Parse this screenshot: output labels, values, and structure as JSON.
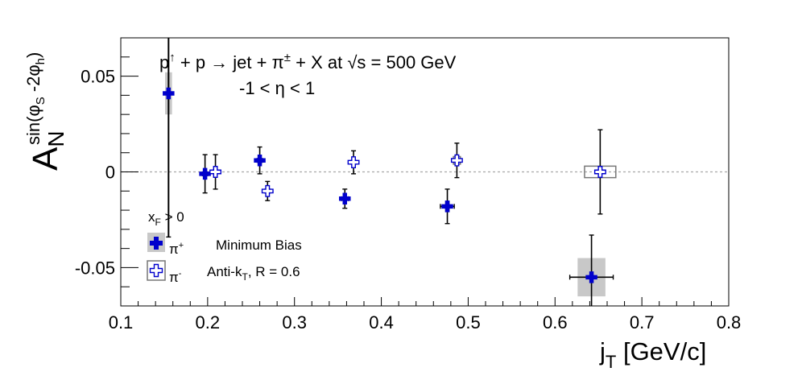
{
  "chart_data": {
    "type": "scatter",
    "title_line1_pre": "p",
    "title_line1_up": "↑",
    "title_line1_mid": " + p → jet + π",
    "title_line1_pm": "±",
    "title_line1_post": " + X at  √s = 500 GeV",
    "title_line2": "-1 < η < 1",
    "xlabel_main": "j",
    "xlabel_sub": "T",
    "xlabel_unit": " [GeV/c]",
    "ylabel_main": "A",
    "ylabel_sub": "N",
    "ylabel_sup": "sin(φ",
    "ylabel_sup_s": "S",
    "ylabel_sup_mid": " -2φ",
    "ylabel_sup_h": "h",
    "ylabel_sup_end": ")",
    "xlim": [
      0.1,
      0.8
    ],
    "ylim": [
      -0.07,
      0.07
    ],
    "xticks": [
      "0.1",
      "0.2",
      "0.3",
      "0.4",
      "0.5",
      "0.6",
      "0.7",
      "0.8"
    ],
    "yticks": [
      "-0.05",
      "0",
      "0.05"
    ],
    "zero_line": true,
    "legend": {
      "xf_main": "x",
      "xf_sub": "F",
      "xf_rest": " > 0",
      "pi_plus": "π",
      "pi_plus_sup": "+",
      "pi_minus": "π",
      "pi_minus_sup": "-",
      "note1": "Minimum Bias",
      "note2_pre": "Anti-k",
      "note2_sub": "T",
      "note2_post": ", R = 0.6"
    },
    "series": [
      {
        "name": "π+",
        "color": "#0000cc",
        "filled": true,
        "points": [
          {
            "x": 0.155,
            "y": 0.041,
            "xerr": 0.0,
            "yerr": 0.075,
            "sys_dx": 0.004,
            "sys_dy": 0.011
          },
          {
            "x": 0.197,
            "y": -0.001,
            "xerr": 0.003,
            "yerr": 0.01,
            "sys_dx": 0.0,
            "sys_dy": 0.0
          },
          {
            "x": 0.26,
            "y": 0.006,
            "xerr": 0.003,
            "yerr": 0.007,
            "sys_dx": 0.0,
            "sys_dy": 0.0
          },
          {
            "x": 0.358,
            "y": -0.014,
            "xerr": 0.004,
            "yerr": 0.005,
            "sys_dx": 0.0,
            "sys_dy": 0.0
          },
          {
            "x": 0.476,
            "y": -0.018,
            "xerr": 0.008,
            "yerr": 0.009,
            "sys_dx": 0.003,
            "sys_dy": 0.003
          },
          {
            "x": 0.642,
            "y": -0.055,
            "xerr": 0.025,
            "yerr": 0.022,
            "sys_dx": 0.016,
            "sys_dy": 0.01
          }
        ]
      },
      {
        "name": "π-",
        "color": "#0000cc",
        "filled": false,
        "points": [
          {
            "x": 0.209,
            "y": 0.0,
            "xerr": 0.003,
            "yerr": 0.009,
            "sys_dx": 0.0,
            "sys_dy": 0.0
          },
          {
            "x": 0.269,
            "y": -0.01,
            "xerr": 0.003,
            "yerr": 0.005,
            "sys_dx": 0.0,
            "sys_dy": 0.0
          },
          {
            "x": 0.368,
            "y": 0.005,
            "xerr": 0.003,
            "yerr": 0.006,
            "sys_dx": 0.0,
            "sys_dy": 0.0
          },
          {
            "x": 0.487,
            "y": 0.006,
            "xerr": 0.004,
            "yerr": 0.009,
            "sys_dx": 0.004,
            "sys_dy": 0.002
          },
          {
            "x": 0.652,
            "y": 0.0,
            "xerr": 0.0,
            "yerr": 0.022,
            "sys_dx": 0.018,
            "sys_dy": 0.003
          }
        ]
      }
    ]
  }
}
